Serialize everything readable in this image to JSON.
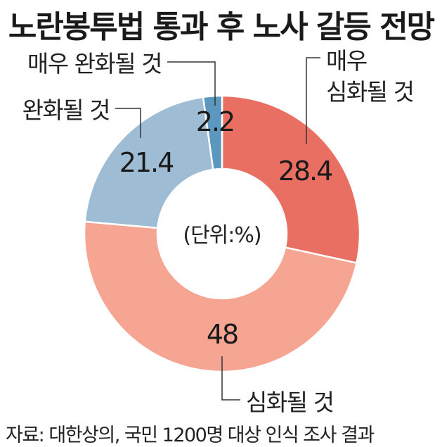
{
  "title": "노란봉투법 통과 후 노사 갈등 전망",
  "unit_note": "(단위:%)",
  "source": "자료: 대한상의, 국민 1200명 대상 인식 조사 결과",
  "colors": {
    "very_worse": "#e86f61",
    "worse": "#f5a592",
    "better": "#9ebdd4",
    "very_better": "#5b97be"
  },
  "chart_data": {
    "type": "pie",
    "donut": true,
    "unit": "%",
    "slices": [
      {
        "label_lines": [
          "매우",
          "심화될 것"
        ],
        "value": 28.4,
        "value_label": "28.4",
        "color": "#e86f61"
      },
      {
        "label_lines": [
          "심화될 것"
        ],
        "value": 48,
        "value_label": "48",
        "color": "#f5a592"
      },
      {
        "label_lines": [
          "완화될 것"
        ],
        "value": 21.4,
        "value_label": "21.4",
        "color": "#9ebdd4"
      },
      {
        "label_lines": [
          "매우 완화될 것"
        ],
        "value": 2.2,
        "value_label": "2.2",
        "color": "#5b97be"
      }
    ]
  }
}
